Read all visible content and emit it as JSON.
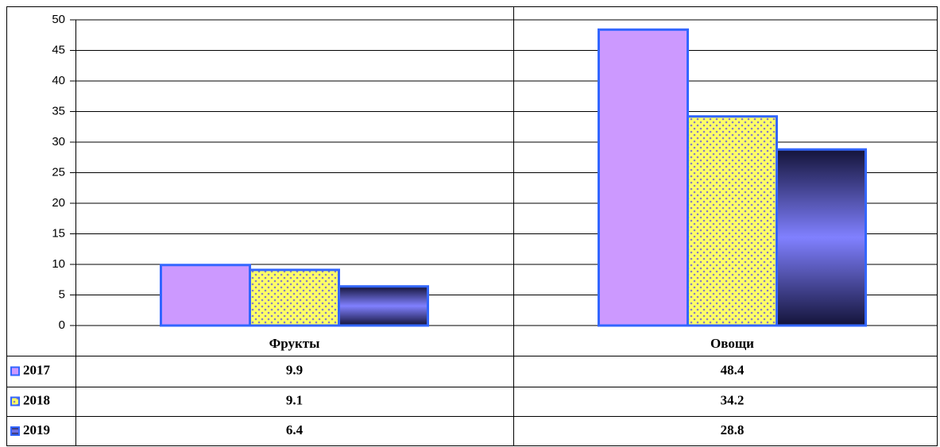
{
  "chart_data": {
    "type": "bar",
    "categories": [
      "Фрукты",
      "Овощи"
    ],
    "series": [
      {
        "name": "2017",
        "color": "#cc99ff",
        "values": [
          9.9,
          48.4
        ]
      },
      {
        "name": "2018",
        "color": "#ffff66",
        "values": [
          9.1,
          34.2
        ]
      },
      {
        "name": "2019",
        "color": "#8080ff",
        "values": [
          6.4,
          28.8
        ]
      }
    ],
    "ylim": [
      0,
      50
    ],
    "yticks": [
      0,
      5,
      10,
      15,
      20,
      25,
      30,
      35,
      40,
      45,
      50
    ],
    "grid": true,
    "data_table": true
  }
}
